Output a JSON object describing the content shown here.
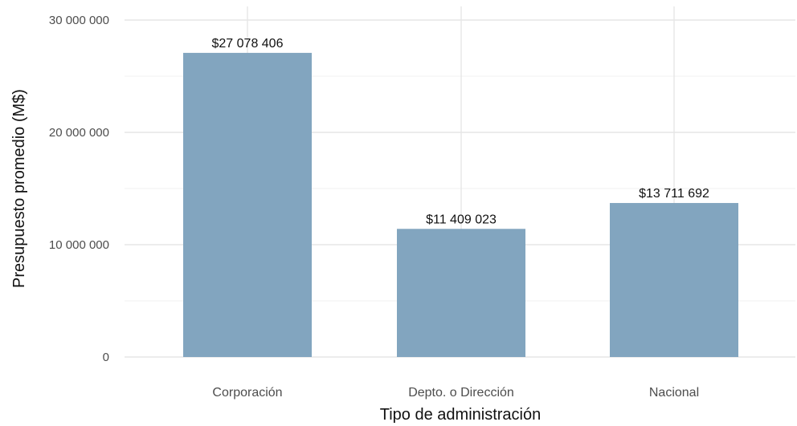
{
  "chart_data": {
    "type": "bar",
    "categories": [
      "Corporación",
      "Depto. o Dirección",
      "Nacional"
    ],
    "values": [
      27078406,
      11409023,
      13711692
    ],
    "data_labels": [
      "$27 078 406",
      "$11 409 023",
      "$13 711 692"
    ],
    "title": "",
    "xlabel": "Tipo de administración",
    "ylabel": "Presupuesto promedio (M$)",
    "ylim": [
      0,
      30000000
    ],
    "yticks": [
      0,
      10000000,
      20000000,
      30000000
    ],
    "ytick_labels": [
      "0",
      "10 000 000",
      "20 000 000",
      "30 000 000"
    ],
    "grid": true,
    "bar_color": "#82a5bf"
  }
}
